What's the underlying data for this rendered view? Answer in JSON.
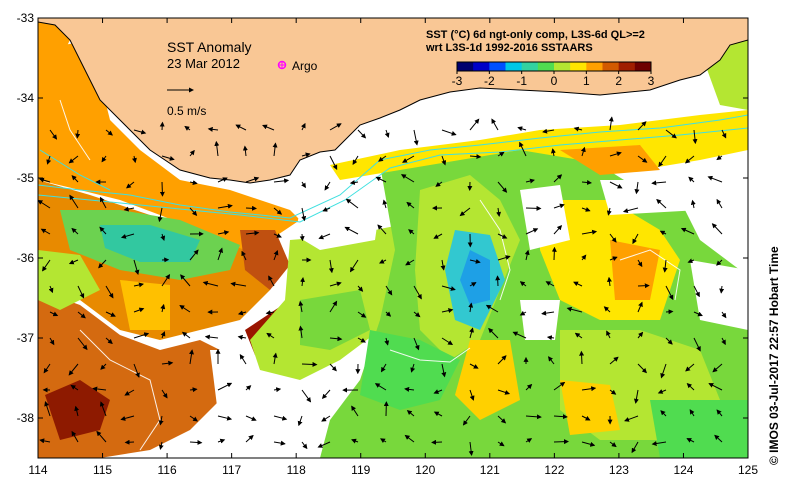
{
  "title": {
    "line1": "SST Anomaly",
    "line2": "23 Mar 2012"
  },
  "legend": {
    "argo_label": "Argo",
    "argo_color": "#ff00ff",
    "velocity_label": "0.5 m/s"
  },
  "colorbar": {
    "title_line1": "SST (°C) 6d ngt-only comp, L3S-6d QL>=2",
    "title_line2": "wrt L3S-1d 1992-2016 SSTAARS",
    "ticks": [
      "-3",
      "-2",
      "-1",
      "0",
      "1",
      "2",
      "3"
    ],
    "colors": [
      "#00006e",
      "#0000c8",
      "#0050ff",
      "#00c8e6",
      "#32d2a0",
      "#50dc50",
      "#b4e632",
      "#ffe600",
      "#ffa000",
      "#d25a00",
      "#a01e00",
      "#6e0000"
    ]
  },
  "axes": {
    "x_ticks": [
      "114",
      "115",
      "116",
      "117",
      "118",
      "119",
      "120",
      "121",
      "122",
      "123",
      "124",
      "125"
    ],
    "y_ticks": [
      "-33",
      "-34",
      "-35",
      "-36",
      "-37",
      "-38"
    ]
  },
  "credit": "© IMOS 03-Jul-2017 22:57 Hobart Time",
  "colors": {
    "land": "#f9c795",
    "no_data": "#ffffff",
    "coast": "#000000",
    "isobath": "#40e0e0",
    "sst_contour": "#ffffff"
  }
}
